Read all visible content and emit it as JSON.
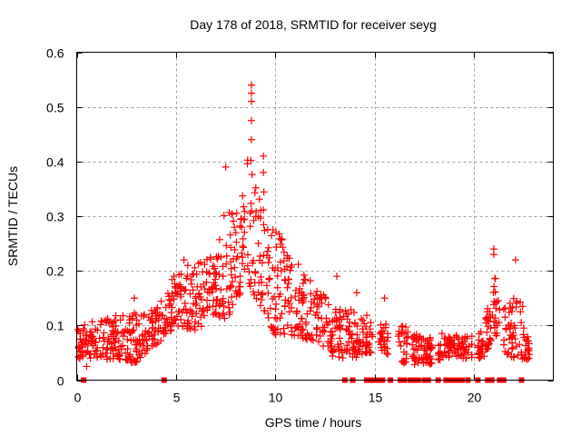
{
  "chart_data": {
    "type": "scatter",
    "title": "Day 178 of 2018, SRMTID for receiver seyg",
    "xlabel": "GPS time / hours",
    "ylabel": "SRMTID / TECUs",
    "xlim": [
      0,
      24
    ],
    "ylim": [
      0,
      0.6
    ],
    "xticks": [
      "0",
      "5",
      "10",
      "15",
      "20"
    ],
    "xtick_values": [
      0,
      5,
      10,
      15,
      20
    ],
    "yticks": [
      "0",
      "0.1",
      "0.2",
      "0.3",
      "0.4",
      "0.5",
      "0.6"
    ],
    "ytick_values": [
      0,
      0.1,
      0.2,
      0.3,
      0.4,
      0.5,
      0.6
    ],
    "grid": true,
    "marker": "+",
    "color": "#ff0000",
    "envelope": [
      {
        "x": 0.0,
        "lo": 0.04,
        "hi": 0.1
      },
      {
        "x": 1.0,
        "lo": 0.035,
        "hi": 0.11
      },
      {
        "x": 2.0,
        "lo": 0.04,
        "hi": 0.12
      },
      {
        "x": 3.0,
        "lo": 0.03,
        "hi": 0.13
      },
      {
        "x": 3.5,
        "lo": 0.05,
        "hi": 0.12
      },
      {
        "x": 4.5,
        "lo": 0.08,
        "hi": 0.16
      },
      {
        "x": 5.0,
        "lo": 0.1,
        "hi": 0.2
      },
      {
        "x": 6.0,
        "lo": 0.09,
        "hi": 0.22
      },
      {
        "x": 7.0,
        "lo": 0.12,
        "hi": 0.24
      },
      {
        "x": 7.5,
        "lo": 0.1,
        "hi": 0.33
      },
      {
        "x": 8.0,
        "lo": 0.15,
        "hi": 0.3
      },
      {
        "x": 8.7,
        "lo": 0.17,
        "hi": 0.44
      },
      {
        "x": 9.3,
        "lo": 0.13,
        "hi": 0.36
      },
      {
        "x": 10.0,
        "lo": 0.08,
        "hi": 0.28
      },
      {
        "x": 11.0,
        "lo": 0.08,
        "hi": 0.22
      },
      {
        "x": 12.0,
        "lo": 0.07,
        "hi": 0.18
      },
      {
        "x": 13.0,
        "lo": 0.04,
        "hi": 0.13
      },
      {
        "x": 14.0,
        "lo": 0.04,
        "hi": 0.13
      },
      {
        "x": 14.5,
        "lo": 0.05,
        "hi": 0.12
      },
      {
        "x": 15.5,
        "lo": 0.05,
        "hi": 0.11
      },
      {
        "x": 16.5,
        "lo": 0.03,
        "hi": 0.1
      },
      {
        "x": 17.5,
        "lo": 0.025,
        "hi": 0.08
      },
      {
        "x": 18.5,
        "lo": 0.04,
        "hi": 0.09
      },
      {
        "x": 19.5,
        "lo": 0.04,
        "hi": 0.08
      },
      {
        "x": 20.5,
        "lo": 0.04,
        "hi": 0.09
      },
      {
        "x": 21.0,
        "lo": 0.08,
        "hi": 0.21
      },
      {
        "x": 21.7,
        "lo": 0.04,
        "hi": 0.14
      },
      {
        "x": 22.3,
        "lo": 0.04,
        "hi": 0.17
      },
      {
        "x": 22.8,
        "lo": 0.03,
        "hi": 0.07
      }
    ],
    "outliers": [
      {
        "x": 8.8,
        "y": 0.54
      },
      {
        "x": 8.8,
        "y": 0.525
      },
      {
        "x": 8.8,
        "y": 0.51
      },
      {
        "x": 8.8,
        "y": 0.475
      },
      {
        "x": 8.8,
        "y": 0.44
      },
      {
        "x": 7.5,
        "y": 0.39
      },
      {
        "x": 9.4,
        "y": 0.41
      },
      {
        "x": 9.4,
        "y": 0.38
      },
      {
        "x": 21.0,
        "y": 0.24
      },
      {
        "x": 21.0,
        "y": 0.23
      },
      {
        "x": 22.1,
        "y": 0.22
      },
      {
        "x": 2.9,
        "y": 0.15
      },
      {
        "x": 4.9,
        "y": 0.19
      },
      {
        "x": 5.4,
        "y": 0.22
      },
      {
        "x": 0.5,
        "y": 0.025
      },
      {
        "x": 15.5,
        "y": 0.15
      },
      {
        "x": 14.1,
        "y": 0.16
      },
      {
        "x": 13.1,
        "y": 0.19
      }
    ],
    "zero_points_x": [
      0.35,
      4.4,
      13.5,
      13.9,
      14.6,
      14.8,
      15.0,
      15.2,
      15.4,
      15.8,
      16.3,
      16.5,
      16.8,
      17.0,
      17.2,
      17.5,
      17.7,
      18.2,
      18.6,
      18.8,
      19.0,
      19.2,
      19.4,
      19.7,
      20.2,
      20.7,
      20.9,
      21.3,
      21.5,
      22.4
    ]
  }
}
